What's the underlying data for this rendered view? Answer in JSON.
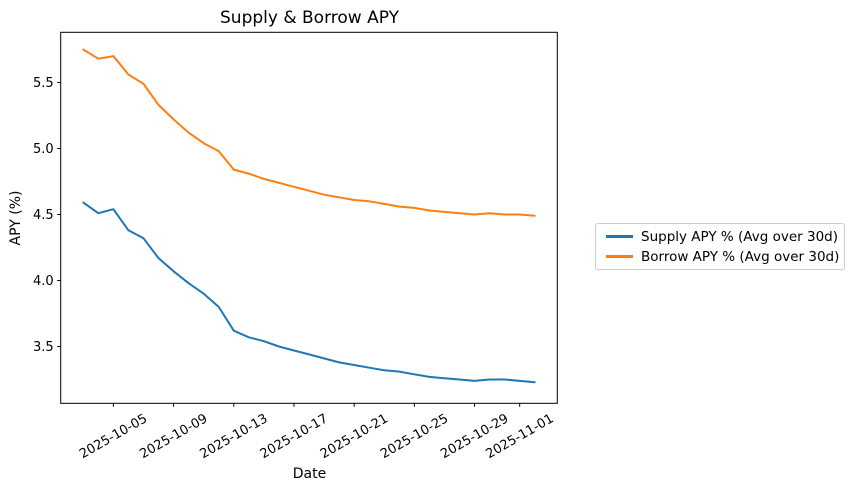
{
  "figure": {
    "background": "#ffffff"
  },
  "chart_data": {
    "type": "line",
    "title": "Supply & Borrow APY",
    "xlabel": "Date",
    "ylabel": "APY (%)",
    "x": [
      "2025-10-03",
      "2025-10-04",
      "2025-10-05",
      "2025-10-06",
      "2025-10-07",
      "2025-10-08",
      "2025-10-09",
      "2025-10-10",
      "2025-10-11",
      "2025-10-12",
      "2025-10-13",
      "2025-10-14",
      "2025-10-15",
      "2025-10-16",
      "2025-10-17",
      "2025-10-18",
      "2025-10-19",
      "2025-10-20",
      "2025-10-21",
      "2025-10-22",
      "2025-10-23",
      "2025-10-24",
      "2025-10-25",
      "2025-10-26",
      "2025-10-27",
      "2025-10-28",
      "2025-10-29",
      "2025-10-30",
      "2025-10-31",
      "2025-11-01",
      "2025-11-02"
    ],
    "series": [
      {
        "name": "Supply APY % (Avg over 30d)",
        "color": "#1f77b4",
        "values": [
          4.59,
          4.51,
          4.54,
          4.38,
          4.32,
          4.17,
          4.07,
          3.98,
          3.9,
          3.8,
          3.62,
          3.57,
          3.54,
          3.5,
          3.47,
          3.44,
          3.41,
          3.38,
          3.36,
          3.34,
          3.32,
          3.31,
          3.29,
          3.27,
          3.26,
          3.25,
          3.24,
          3.25,
          3.25,
          3.24,
          3.23
        ]
      },
      {
        "name": "Borrow APY % (Avg over 30d)",
        "color": "#ff7f0e",
        "values": [
          5.75,
          5.68,
          5.7,
          5.56,
          5.49,
          5.33,
          5.22,
          5.12,
          5.04,
          4.98,
          4.84,
          4.81,
          4.77,
          4.74,
          4.71,
          4.68,
          4.65,
          4.63,
          4.61,
          4.6,
          4.58,
          4.56,
          4.55,
          4.53,
          4.52,
          4.51,
          4.5,
          4.51,
          4.5,
          4.5,
          4.49
        ]
      }
    ],
    "xticks": [
      "2025-10-05",
      "2025-10-09",
      "2025-10-13",
      "2025-10-17",
      "2025-10-21",
      "2025-10-25",
      "2025-10-29",
      "2025-11-01"
    ],
    "yticks": [
      3.5,
      4.0,
      4.5,
      5.0,
      5.5
    ],
    "ylim": [
      3.07,
      5.88
    ],
    "grid": false,
    "tick_label_rotation_deg": 30,
    "axis_color": "#000000",
    "legend": {
      "position": "outside-right",
      "border_color": "#cccccc"
    }
  }
}
